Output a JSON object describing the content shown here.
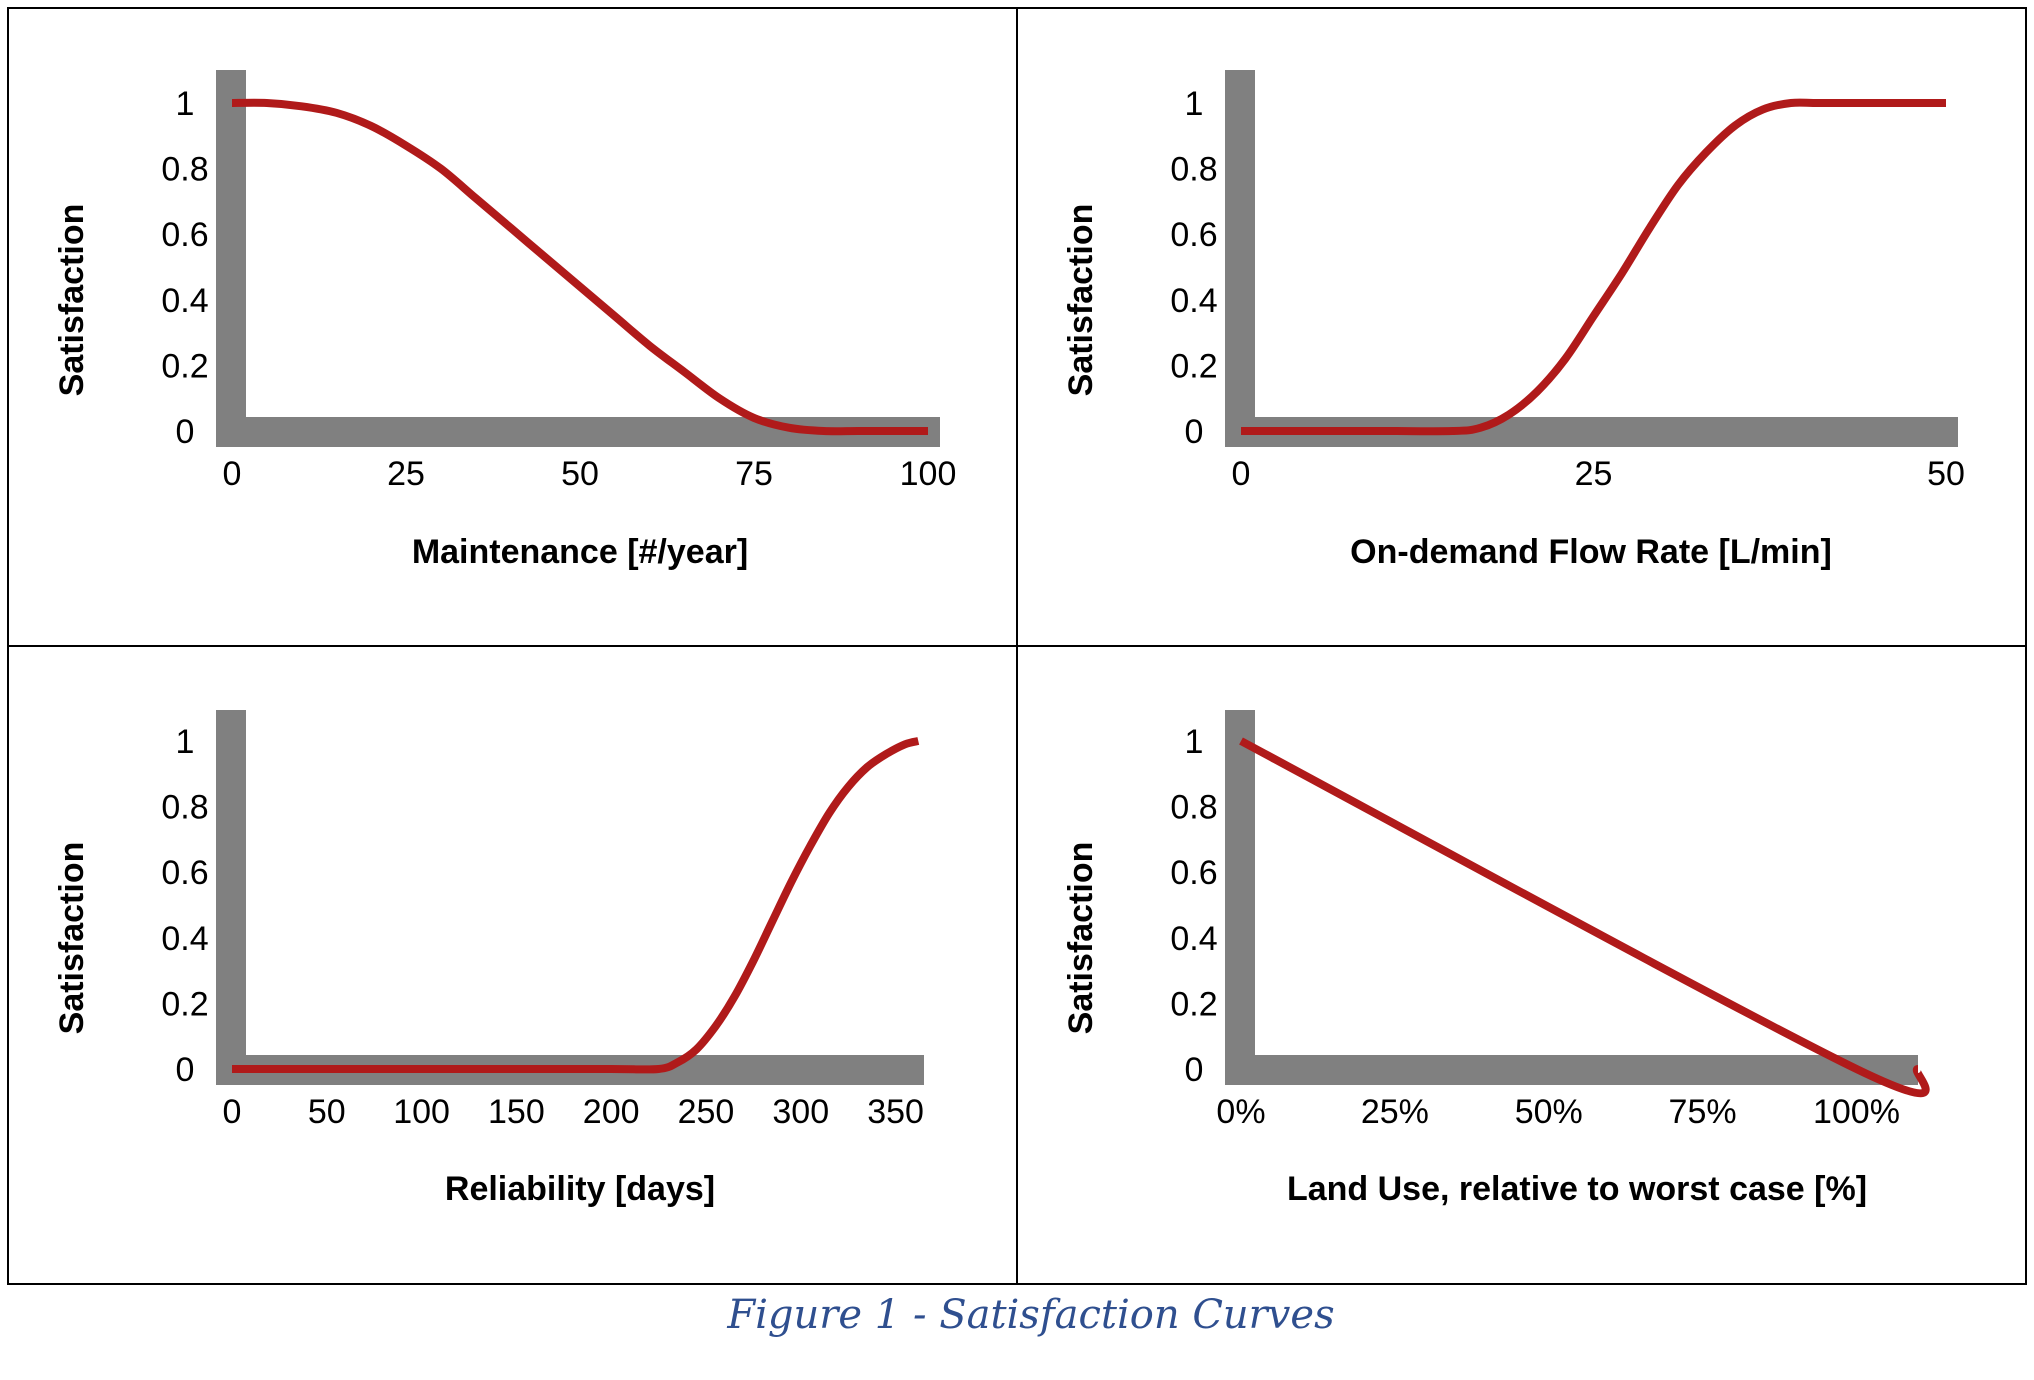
{
  "figure": {
    "caption": "Figure 1 - Satisfaction Curves"
  },
  "colors": {
    "curve": "#b01a1a",
    "axis": "#808080",
    "caption": "#2f4f8f",
    "text": "#000000",
    "border": "#000000"
  },
  "chart_data": [
    {
      "type": "line",
      "title": "",
      "xlabel": "Maintenance [#/year]",
      "ylabel": "Satisfaction",
      "xlim": [
        0,
        100
      ],
      "ylim": [
        0,
        1
      ],
      "x_ticks": [
        0,
        25,
        50,
        75,
        100
      ],
      "x_tick_labels": [
        "0",
        "25",
        "50",
        "75",
        "100"
      ],
      "y_ticks": [
        0,
        0.2,
        0.4,
        0.6,
        0.8,
        1
      ],
      "y_tick_labels": [
        "0",
        "0.2",
        "0.4",
        "0.6",
        "0.8",
        "1"
      ],
      "grid": false,
      "legend": "none",
      "series": [
        {
          "x": [
            0,
            5,
            10,
            15,
            20,
            25,
            30,
            35,
            40,
            45,
            50,
            55,
            60,
            65,
            70,
            75,
            80,
            85,
            90,
            95,
            100
          ],
          "y": [
            1.0,
            1.0,
            0.99,
            0.97,
            0.93,
            0.87,
            0.8,
            0.71,
            0.62,
            0.53,
            0.44,
            0.35,
            0.26,
            0.18,
            0.1,
            0.04,
            0.01,
            0.0,
            0.0,
            0.0,
            0.0
          ]
        }
      ]
    },
    {
      "type": "line",
      "title": "",
      "xlabel": "On-demand Flow Rate [L/min]",
      "ylabel": "Satisfaction",
      "xlim": [
        0,
        50
      ],
      "ylim": [
        0,
        1
      ],
      "x_ticks": [
        0,
        25,
        50
      ],
      "x_tick_labels": [
        "0",
        "25",
        "50"
      ],
      "y_ticks": [
        0,
        0.2,
        0.4,
        0.6,
        0.8,
        1
      ],
      "y_tick_labels": [
        "0",
        "0.2",
        "0.4",
        "0.6",
        "0.8",
        "1"
      ],
      "grid": false,
      "legend": "none",
      "series": [
        {
          "x": [
            0,
            5,
            10,
            15,
            17,
            19,
            21,
            23,
            25,
            27,
            29,
            31,
            33,
            35,
            37,
            39,
            41,
            45,
            50
          ],
          "y": [
            0.0,
            0.0,
            0.0,
            0.0,
            0.01,
            0.05,
            0.12,
            0.22,
            0.35,
            0.48,
            0.62,
            0.75,
            0.85,
            0.93,
            0.98,
            1.0,
            1.0,
            1.0,
            1.0
          ]
        }
      ]
    },
    {
      "type": "line",
      "title": "",
      "xlabel": "Reliability [days]",
      "ylabel": "Satisfaction",
      "xlim": [
        0,
        365
      ],
      "ylim": [
        0,
        1
      ],
      "x_ticks": [
        0,
        50,
        100,
        150,
        200,
        250,
        300,
        350
      ],
      "x_tick_labels": [
        "0",
        "50",
        "100",
        "150",
        "200",
        "250",
        "300",
        "350"
      ],
      "y_ticks": [
        0,
        0.2,
        0.4,
        0.6,
        0.8,
        1
      ],
      "y_tick_labels": [
        "0",
        "0.2",
        "0.4",
        "0.6",
        "0.8",
        "1"
      ],
      "grid": false,
      "legend": "none",
      "series": [
        {
          "x": [
            0,
            50,
            100,
            150,
            200,
            225,
            235,
            245,
            255,
            265,
            275,
            285,
            295,
            305,
            315,
            325,
            335,
            345,
            355,
            362
          ],
          "y": [
            0.0,
            0.0,
            0.0,
            0.0,
            0.0,
            0.0,
            0.02,
            0.06,
            0.13,
            0.22,
            0.33,
            0.45,
            0.57,
            0.68,
            0.78,
            0.86,
            0.92,
            0.96,
            0.99,
            1.0
          ]
        }
      ]
    },
    {
      "type": "line",
      "title": "",
      "xlabel": "Land Use, relative to worst case [%]",
      "ylabel": "Satisfaction",
      "xlim": [
        0,
        110
      ],
      "ylim": [
        0,
        1
      ],
      "x_ticks": [
        0,
        25,
        50,
        75,
        100
      ],
      "x_tick_labels": [
        "0%",
        "25%",
        "50%",
        "75%",
        "100%"
      ],
      "y_ticks": [
        0,
        0.2,
        0.4,
        0.6,
        0.8,
        1
      ],
      "y_tick_labels": [
        "0",
        "0.2",
        "0.4",
        "0.6",
        "0.8",
        "1"
      ],
      "grid": false,
      "legend": "none",
      "series": [
        {
          "x": [
            0,
            100,
            110
          ],
          "y": [
            1.0,
            0.0,
            0.0
          ]
        }
      ]
    }
  ]
}
